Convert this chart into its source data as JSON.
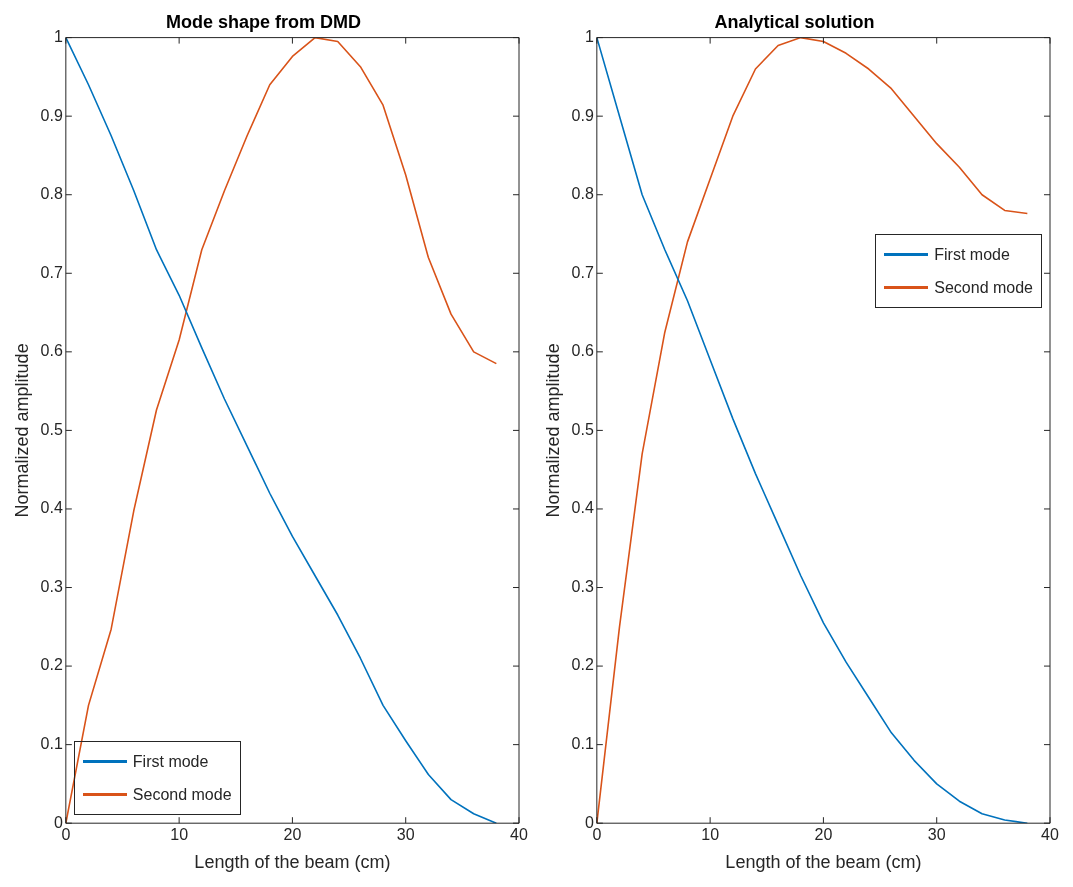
{
  "chart_data": [
    {
      "type": "line",
      "title": "Mode shape from DMD",
      "xlabel": "Length of the beam (cm)",
      "ylabel": "Normalized amplitude",
      "x": [
        0,
        2,
        4,
        6,
        8,
        10,
        12,
        14,
        16,
        18,
        20,
        22,
        24,
        26,
        28,
        30,
        32,
        34,
        36,
        38
      ],
      "series": [
        {
          "name": "First mode",
          "color": "#0072bd",
          "values": [
            1,
            0.94,
            0.875,
            0.805,
            0.73,
            0.672,
            0.605,
            0.54,
            0.48,
            0.42,
            0.365,
            0.315,
            0.265,
            0.21,
            0.15,
            0.105,
            0.062,
            0.03,
            0.012,
            0
          ]
        },
        {
          "name": "Second mode",
          "color": "#d95319",
          "values": [
            0,
            0.15,
            0.247,
            0.398,
            0.526,
            0.615,
            0.73,
            0.805,
            0.875,
            0.94,
            0.976,
            1,
            0.995,
            0.963,
            0.914,
            0.825,
            0.72,
            0.648,
            0.6,
            0.585
          ]
        }
      ],
      "xlim": [
        0,
        40
      ],
      "xticks": [
        0,
        10,
        20,
        30,
        40
      ],
      "ylim": [
        0,
        1
      ],
      "yticks": [
        0,
        0.1,
        0.2,
        0.3,
        0.4,
        0.5,
        0.6,
        0.7,
        0.8,
        0.9,
        1
      ],
      "grid": false,
      "legend": "bottom left",
      "line_style": "solid",
      "marker": "none"
    },
    {
      "type": "line",
      "title": "Analytical solution",
      "xlabel": "Length of the beam (cm)",
      "ylabel": "Normalized amplitude",
      "x": [
        0,
        2,
        4,
        6,
        8,
        10,
        12,
        14,
        16,
        18,
        20,
        22,
        24,
        26,
        28,
        30,
        32,
        34,
        36,
        38
      ],
      "series": [
        {
          "name": "First mode",
          "color": "#0072bd",
          "values": [
            1,
            0.9,
            0.8,
            0.73,
            0.665,
            0.59,
            0.515,
            0.445,
            0.38,
            0.315,
            0.255,
            0.205,
            0.16,
            0.115,
            0.08,
            0.05,
            0.028,
            0.012,
            0.004,
            0
          ]
        },
        {
          "name": "Second mode",
          "color": "#d95319",
          "values": [
            0,
            0.25,
            0.47,
            0.625,
            0.74,
            0.82,
            0.9,
            0.96,
            0.99,
            1,
            0.995,
            0.98,
            0.96,
            0.935,
            0.9,
            0.865,
            0.835,
            0.8,
            0.78,
            0.776
          ]
        }
      ],
      "xlim": [
        0,
        40
      ],
      "xticks": [
        0,
        10,
        20,
        30,
        40
      ],
      "ylim": [
        0,
        1
      ],
      "yticks": [
        0,
        0.1,
        0.2,
        0.3,
        0.4,
        0.5,
        0.6,
        0.7,
        0.8,
        0.9,
        1
      ],
      "grid": false,
      "legend": "right",
      "line_style": "solid",
      "marker": "none"
    }
  ]
}
